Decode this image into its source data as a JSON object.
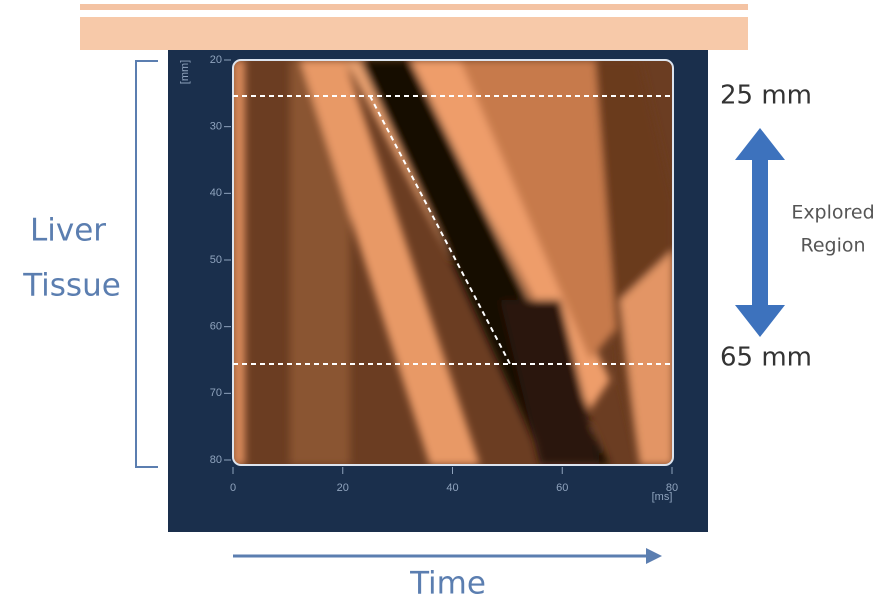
{
  "labels": {
    "tissue": [
      "Liver",
      "Tissue"
    ],
    "top_depth": "25 mm",
    "bottom_depth": "65 mm",
    "region": [
      "Explored",
      "Region"
    ],
    "time": "Time"
  },
  "axes": {
    "y_unit": "[mm]",
    "y_ticks": [
      20,
      30,
      40,
      50,
      60,
      70,
      80
    ],
    "x_unit": "[ms]",
    "x_ticks": [
      0,
      20,
      40,
      60,
      80
    ]
  }
}
